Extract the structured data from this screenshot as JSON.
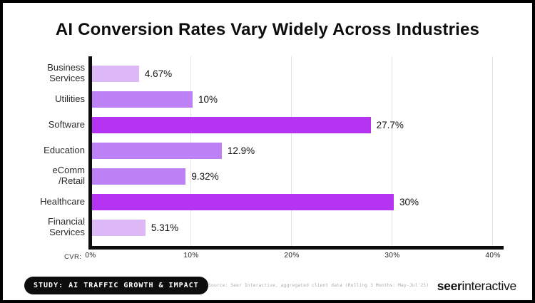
{
  "title": "AI Conversion Rates Vary Widely Across Industries",
  "chart_data": {
    "type": "bar",
    "orientation": "horizontal",
    "title": "AI Conversion Rates Vary Widely Across Industries",
    "xlabel": "CVR:",
    "ylabel": "",
    "xlim": [
      0,
      40
    ],
    "x_ticks": [
      "0%",
      "10%",
      "20%",
      "30%",
      "40%"
    ],
    "grid": true,
    "categories": [
      "Business\nServices",
      "Utilities",
      "Software",
      "Education",
      "eComm\n/Retail",
      "Healthcare",
      "Financial\nServices"
    ],
    "values": [
      4.67,
      10,
      27.7,
      12.9,
      9.32,
      30,
      5.31
    ],
    "value_labels": [
      "4.67%",
      "10%",
      "27.7%",
      "12.9%",
      "9.32%",
      "30%",
      "5.31%"
    ],
    "bar_colors": [
      "#dcb9f6",
      "#bd80f5",
      "#b434f2",
      "#bd80f5",
      "#bd80f5",
      "#b434f2",
      "#dcb9f6"
    ],
    "palette": {
      "light": "#dcb9f6",
      "medium": "#bd80f5",
      "bright": "#b434f2"
    },
    "axis_color": "#0d0d0d",
    "grid_color": "#e3e3e3"
  },
  "footer": {
    "study_label": "STUDY: AI TRAFFIC GROWTH & IMPACT",
    "source": "Source: Seer Interactive, aggregated client data (Rolling 3 Months: May-Jul'25)",
    "logo_bold": "seer",
    "logo_regular": "interactive"
  }
}
